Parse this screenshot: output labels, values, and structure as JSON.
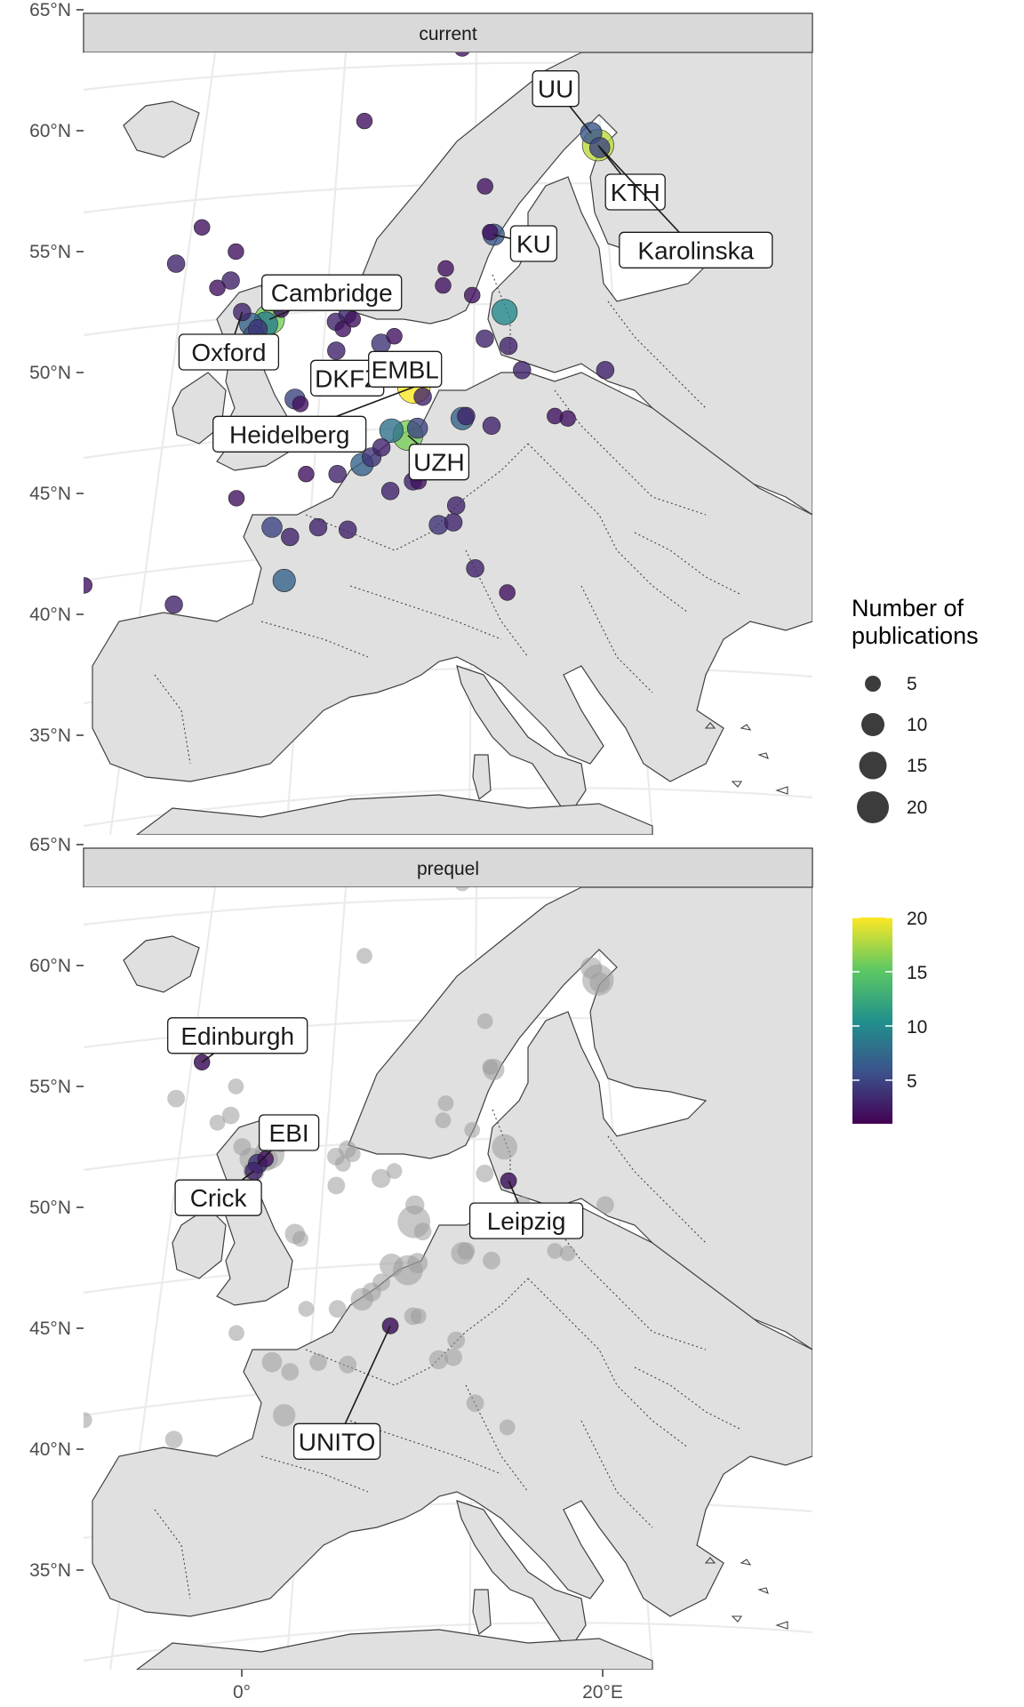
{
  "panels": [
    {
      "label": "current"
    },
    {
      "label": "prequel"
    }
  ],
  "axes": {
    "lat_ticks": [
      "65°N",
      "60°N",
      "55°N",
      "50°N",
      "45°N",
      "40°N",
      "35°N"
    ],
    "lon_ticks": [
      "0°",
      "20°E"
    ]
  },
  "legend": {
    "size_title_line1": "Number of",
    "size_title_line2": "publications",
    "size_values": [
      "5",
      "10",
      "15",
      "20"
    ],
    "color_values": [
      "20",
      "15",
      "10",
      "5"
    ],
    "colors": [
      "#440154",
      "#3b528b",
      "#21918c",
      "#5ec962",
      "#fde725"
    ]
  },
  "chart_data": {
    "type": "scatter",
    "map_extent": {
      "lon": [
        -8,
        30
      ],
      "lat": [
        34,
        66
      ]
    },
    "colorbar_range": [
      1,
      20
    ],
    "size_range": [
      1,
      20
    ],
    "grey_color": "#9a9a9a",
    "current": {
      "points": [
        [
          -0.8,
          52.5,
          3
        ],
        [
          -0.1,
          51.5,
          6
        ],
        [
          0.1,
          51.8,
          4
        ],
        [
          -0.3,
          52.0,
          7
        ],
        [
          0.7,
          52.2,
          16
        ],
        [
          0.5,
          52.0,
          9
        ],
        [
          -3.2,
          56.0,
          2
        ],
        [
          -2.2,
          53.5,
          2
        ],
        [
          -1.5,
          53.8,
          3
        ],
        [
          -4.5,
          54.5,
          3
        ],
        [
          1.3,
          52.6,
          2
        ],
        [
          -1.3,
          55.0,
          2
        ],
        [
          2.3,
          48.9,
          5
        ],
        [
          2.6,
          48.7,
          2
        ],
        [
          4.9,
          52.4,
          3
        ],
        [
          4.4,
          50.9,
          3
        ],
        [
          4.7,
          51.8,
          2
        ],
        [
          5.2,
          52.2,
          2
        ],
        [
          4.3,
          52.1,
          3
        ],
        [
          6.8,
          51.2,
          4
        ],
        [
          7.5,
          51.5,
          2
        ],
        [
          8.7,
          50.1,
          4
        ],
        [
          8.7,
          49.4,
          20
        ],
        [
          9.2,
          49.0,
          3
        ],
        [
          7.6,
          47.6,
          8
        ],
        [
          8.5,
          47.4,
          16
        ],
        [
          9.0,
          47.7,
          5
        ],
        [
          7.1,
          46.9,
          3
        ],
        [
          6.1,
          46.2,
          7
        ],
        [
          6.6,
          46.5,
          4
        ],
        [
          4.8,
          45.8,
          3
        ],
        [
          5.5,
          43.5,
          3
        ],
        [
          3.1,
          45.8,
          2
        ],
        [
          1.4,
          43.6,
          5
        ],
        [
          -0.6,
          44.8,
          2
        ],
        [
          2.4,
          43.2,
          3
        ],
        [
          3.9,
          43.6,
          3
        ],
        [
          2.2,
          41.4,
          7
        ],
        [
          -3.7,
          40.4,
          3
        ],
        [
          -8.6,
          41.2,
          2
        ],
        [
          8.9,
          45.5,
          3
        ],
        [
          9.2,
          45.5,
          2
        ],
        [
          7.7,
          45.1,
          3
        ],
        [
          11.3,
          44.5,
          3
        ],
        [
          10.4,
          43.7,
          4
        ],
        [
          11.2,
          43.8,
          3
        ],
        [
          12.5,
          41.9,
          3
        ],
        [
          14.3,
          40.9,
          2
        ],
        [
          11.4,
          48.1,
          7
        ],
        [
          11.6,
          48.2,
          3
        ],
        [
          13.0,
          47.8,
          3
        ],
        [
          16.4,
          48.2,
          2
        ],
        [
          13.4,
          52.5,
          10
        ],
        [
          12.4,
          51.4,
          3
        ],
        [
          13.7,
          51.1,
          3
        ],
        [
          10.0,
          53.6,
          2
        ],
        [
          10.1,
          54.3,
          2
        ],
        [
          12.6,
          55.7,
          6
        ],
        [
          12.4,
          55.8,
          2
        ],
        [
          11.6,
          53.2,
          2
        ],
        [
          18.0,
          59.4,
          18
        ],
        [
          17.6,
          59.9,
          6
        ],
        [
          18.1,
          59.3,
          5
        ],
        [
          10.4,
          63.4,
          2
        ],
        [
          5.3,
          60.4,
          2
        ],
        [
          19.0,
          50.1,
          3
        ],
        [
          14.5,
          50.1,
          3
        ],
        [
          17.1,
          48.1,
          2
        ],
        [
          12.0,
          57.7,
          2
        ]
      ],
      "labels": [
        {
          "text": "UU",
          "lon": 17.6,
          "lat": 59.9
        },
        {
          "text": "KTH",
          "lon": 18.1,
          "lat": 59.3
        },
        {
          "text": "Karolinska",
          "lon": 18.0,
          "lat": 59.4
        },
        {
          "text": "KU",
          "lon": 12.6,
          "lat": 55.7
        },
        {
          "text": "Cambridge",
          "lon": 0.7,
          "lat": 52.2
        },
        {
          "text": "Oxford",
          "lon": -0.8,
          "lat": 52.5
        },
        {
          "text": "DKFZ",
          "lon": 8.7,
          "lat": 49.4
        },
        {
          "text": "EMBL",
          "lon": 8.7,
          "lat": 49.4
        },
        {
          "text": "Heidelberg",
          "lon": 8.7,
          "lat": 49.4
        },
        {
          "text": "UZH",
          "lon": 8.5,
          "lat": 47.4
        }
      ]
    },
    "prequel": {
      "points": [
        [
          -3.2,
          56.0,
          2
        ],
        [
          0.1,
          51.8,
          4
        ],
        [
          -0.1,
          51.5,
          3
        ],
        [
          0.5,
          52.0,
          2
        ],
        [
          13.7,
          51.1,
          2
        ],
        [
          7.7,
          45.1,
          2
        ]
      ],
      "labels": [
        {
          "text": "Edinburgh",
          "lon": -3.2,
          "lat": 56.0
        },
        {
          "text": "EBI",
          "lon": 0.1,
          "lat": 51.8
        },
        {
          "text": "Crick",
          "lon": -0.1,
          "lat": 51.5
        },
        {
          "text": "Leipzig",
          "lon": 13.7,
          "lat": 51.1
        },
        {
          "text": "UNITO",
          "lon": 7.7,
          "lat": 45.1
        }
      ]
    }
  }
}
